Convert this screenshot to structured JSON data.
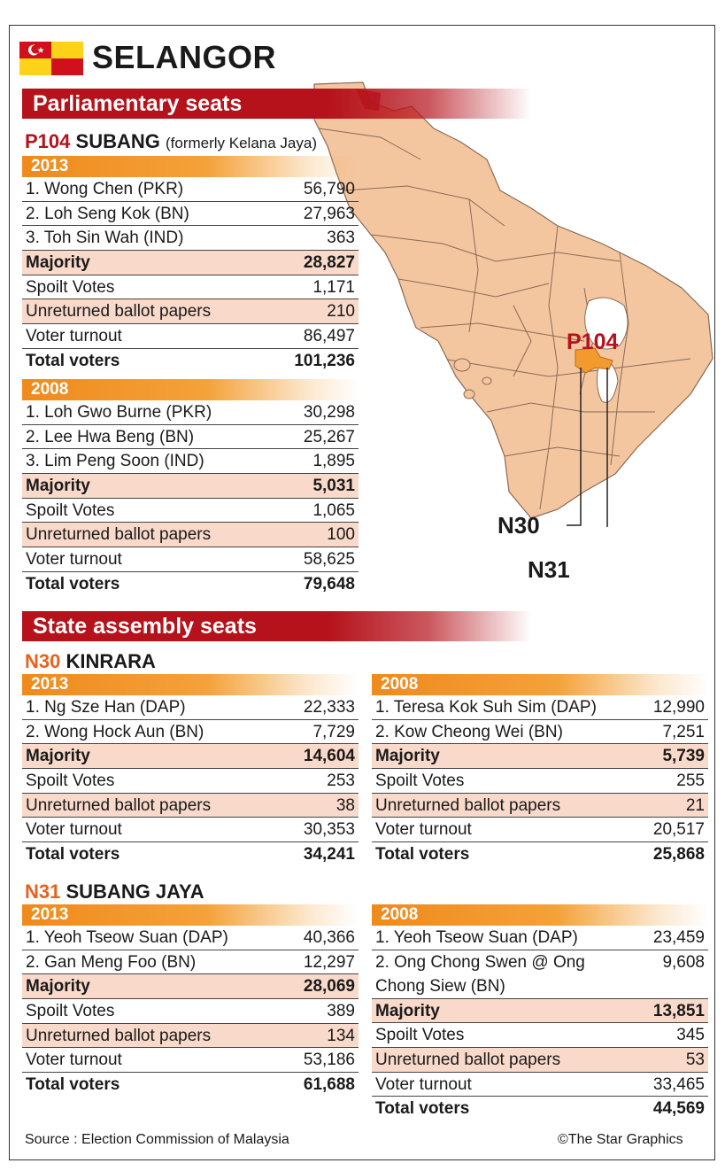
{
  "header": {
    "title": "SELANGOR",
    "section_parliament": "Parliamentary seats",
    "section_state": "State assembly seats"
  },
  "map": {
    "label_p104": "P104",
    "label_n30": "N30",
    "label_n31": "N31",
    "land_color": "#f4c6a0",
    "highlight_color": "#f29a2e"
  },
  "p104": {
    "code": "P104",
    "name": "SUBANG",
    "note": "(formerly Kelana Jaya)",
    "y2013": {
      "year": "2013",
      "rows": [
        {
          "label": "1. Wong Chen (PKR)",
          "value": "56,790"
        },
        {
          "label": "2. Loh Seng Kok  (BN)",
          "value": "27,963"
        },
        {
          "label": "3. Toh Sin Wah (IND)",
          "value": "363"
        },
        {
          "label": "Majority",
          "value": "28,827"
        },
        {
          "label": "Spoilt Votes",
          "value": "1,171"
        },
        {
          "label": "Unreturned ballot papers",
          "value": "210"
        },
        {
          "label": "Voter turnout",
          "value": "86,497"
        },
        {
          "label": "Total voters",
          "value": "101,236"
        }
      ]
    },
    "y2008": {
      "year": "2008",
      "rows": [
        {
          "label": "1. Loh Gwo Burne (PKR)",
          "value": "30,298"
        },
        {
          "label": "2. Lee Hwa Beng  (BN)",
          "value": "25,267"
        },
        {
          "label": "3. Lim Peng Soon  (IND)",
          "value": "1,895"
        },
        {
          "label": "Majority",
          "value": "5,031"
        },
        {
          "label": "Spoilt Votes",
          "value": "1,065"
        },
        {
          "label": "Unreturned ballot papers",
          "value": "100"
        },
        {
          "label": "Voter turnout",
          "value": "58,625"
        },
        {
          "label": "Total voters",
          "value": "79,648"
        }
      ]
    }
  },
  "n30": {
    "code": "N30",
    "name": "KINRARA",
    "y2013": {
      "year": "2013",
      "rows": [
        {
          "label": "1. Ng Sze Han  (DAP)",
          "value": "22,333"
        },
        {
          "label": "2. Wong Hock Aun   (BN)",
          "value": "7,729"
        },
        {
          "label": "Majority",
          "value": "14,604"
        },
        {
          "label": "Spoilt Votes",
          "value": "253"
        },
        {
          "label": "Unreturned ballot papers",
          "value": "38"
        },
        {
          "label": "Voter turnout",
          "value": "30,353"
        },
        {
          "label": "Total voters",
          "value": "34,241"
        }
      ]
    },
    "y2008": {
      "year": "2008",
      "rows": [
        {
          "label": "1. Teresa Kok Suh Sim (DAP)",
          "value": "12,990"
        },
        {
          "label": "2. Kow Cheong Wei (BN)",
          "value": "7,251"
        },
        {
          "label": "Majority",
          "value": "5,739"
        },
        {
          "label": "Spoilt Votes",
          "value": "255"
        },
        {
          "label": "Unreturned ballot papers",
          "value": "21"
        },
        {
          "label": "Voter turnout",
          "value": "20,517"
        },
        {
          "label": "Total voters",
          "value": "25,868"
        }
      ]
    }
  },
  "n31": {
    "code": "N31",
    "name": "SUBANG JAYA",
    "y2013": {
      "year": "2013",
      "rows": [
        {
          "label": "1. Yeoh Tseow Suan  (DAP)",
          "value": "40,366"
        },
        {
          "label": "2. Gan Meng Foo  (BN)",
          "value": "12,297"
        },
        {
          "label": "Majority",
          "value": "28,069"
        },
        {
          "label": "Spoilt Votes",
          "value": "389"
        },
        {
          "label": "Unreturned ballot papers",
          "value": "134"
        },
        {
          "label": "Voter turnout",
          "value": "53,186"
        },
        {
          "label": "Total voters",
          "value": "61,688"
        }
      ]
    },
    "y2008": {
      "year": "2008",
      "rows": [
        {
          "label": "1. Yeoh Tseow Suan  (DAP)",
          "value": "23,459"
        },
        {
          "label": "2. Ong Chong Swen @ Ong Chong Siew (BN)",
          "value": "9,608"
        },
        {
          "label": "Majority",
          "value": "13,851"
        },
        {
          "label": "Spoilt Votes",
          "value": "345"
        },
        {
          "label": "Unreturned ballot papers",
          "value": "53"
        },
        {
          "label": "Voter turnout",
          "value": "33,465"
        },
        {
          "label": "Total voters",
          "value": "44,569"
        }
      ]
    }
  },
  "footer": {
    "source": "Source : Election Commission of Malaysia",
    "credit": "©The Star Graphics"
  }
}
